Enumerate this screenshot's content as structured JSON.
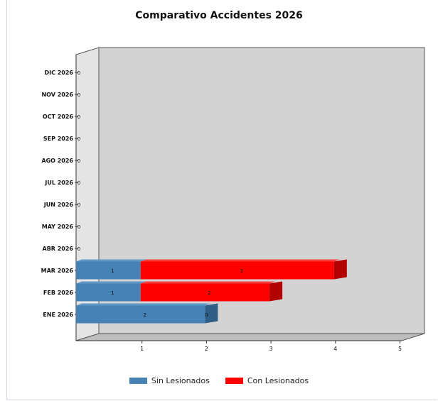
{
  "chart_data": {
    "type": "bar",
    "orientation": "horizontal",
    "stacked": true,
    "style": "3d",
    "title": "Comparativo Accidentes 2026",
    "categories": [
      "ENE 2026",
      "FEB 2026",
      "MAR 2026",
      "ABR 2026",
      "MAY 2026",
      "JUN 2026",
      "JUL 2026",
      "AGO 2026",
      "SEP 2026",
      "OCT 2026",
      "NOV 2026",
      "DIC 2026"
    ],
    "series": [
      {
        "name": "Sin Lesionados",
        "color": "#4682b4",
        "values": [
          2,
          1,
          1,
          0,
          0,
          0,
          0,
          0,
          0,
          0,
          0,
          0
        ]
      },
      {
        "name": "Con Lesionados",
        "color": "#ff0000",
        "values": [
          0,
          2,
          3,
          0,
          0,
          0,
          0,
          0,
          0,
          0,
          0,
          0
        ]
      }
    ],
    "x_ticks": [
      "1",
      "2",
      "3",
      "4",
      "5"
    ],
    "xlim": [
      0,
      5
    ],
    "bar_labels": {
      "Sin Lesionados": [
        "2",
        "1",
        "1",
        "0",
        "0",
        "0",
        "0",
        "0",
        "0",
        "0",
        "0",
        "0"
      ],
      "Con Lesionados": [
        "0",
        "2",
        "3",
        "",
        "",
        "",
        "",
        "",
        "",
        "",
        "",
        ""
      ]
    },
    "legend_position": "bottom",
    "background": "#d3d3d3"
  }
}
